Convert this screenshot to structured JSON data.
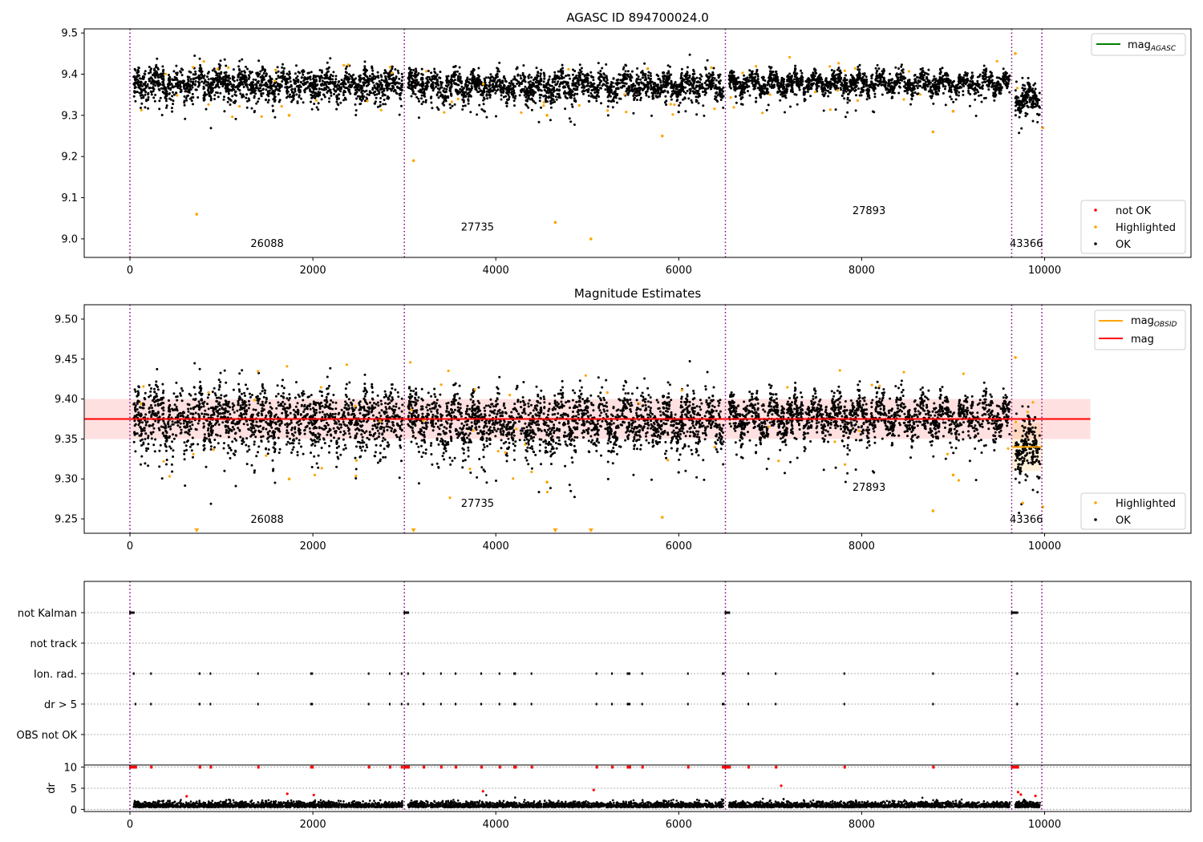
{
  "chart_data": [
    {
      "type": "scatter",
      "title": "AGASC ID 894700024.0",
      "xlim": [
        -500,
        11600
      ],
      "ylim": [
        8.955,
        9.51
      ],
      "xticks": [
        0,
        2000,
        4000,
        6000,
        8000,
        10000
      ],
      "yticks": [
        9.0,
        9.1,
        9.2,
        9.3,
        9.4,
        9.5
      ],
      "ytick_labels": [
        "9.0",
        "9.1",
        "9.2",
        "9.3",
        "9.4",
        "9.5"
      ],
      "obsid_boundaries": [
        0,
        3000,
        6510,
        9640,
        9970
      ],
      "obsid_labels": [
        {
          "text": "26088",
          "x": 1500,
          "y": 8.98
        },
        {
          "text": "27735",
          "x": 3800,
          "y": 9.02
        },
        {
          "text": "27893",
          "x": 8080,
          "y": 9.06
        },
        {
          "text": "43366",
          "x": 9800,
          "y": 8.98
        }
      ],
      "lines": [
        {
          "name": "mag_AGASC",
          "label_base": "mag",
          "label_sub": "AGASC",
          "color": "#008000",
          "y": null
        }
      ],
      "legend_lines_loc": "upper right",
      "legend_points": [
        {
          "label": "not OK",
          "color": "#ff0000"
        },
        {
          "label": "Highlighted",
          "color": "#ffa500"
        },
        {
          "label": "OK",
          "color": "#000000"
        }
      ],
      "legend_points_loc": "lower right",
      "highlighted_outliers": [
        {
          "x": 730,
          "y": 9.06
        },
        {
          "x": 3100,
          "y": 9.19
        },
        {
          "x": 4650,
          "y": 9.04
        },
        {
          "x": 5040,
          "y": 9.0
        },
        {
          "x": 5820,
          "y": 9.25
        },
        {
          "x": 8780,
          "y": 9.26
        },
        {
          "x": 9000,
          "y": 9.31
        },
        {
          "x": 9680,
          "y": 9.45
        },
        {
          "x": 9980,
          "y": 9.27
        },
        {
          "x": 1740,
          "y": 9.3
        },
        {
          "x": 4560,
          "y": 9.3
        }
      ],
      "segments": [
        {
          "x0": 0,
          "x1": 3000,
          "mean": 9.375,
          "spread": 0.022
        },
        {
          "x0": 3000,
          "x1": 6510,
          "mean": 9.372,
          "spread": 0.02
        },
        {
          "x0": 6510,
          "x1": 9640,
          "mean": 9.378,
          "spread": 0.014
        },
        {
          "x0": 9640,
          "x1": 9970,
          "mean": 9.34,
          "spread": 0.02
        }
      ]
    },
    {
      "type": "scatter",
      "title": "Magnitude Estimates",
      "xlim": [
        -500,
        11600
      ],
      "ylim": [
        9.232,
        9.518
      ],
      "xticks": [
        0,
        2000,
        4000,
        6000,
        8000,
        10000
      ],
      "yticks": [
        9.25,
        9.3,
        9.35,
        9.4,
        9.45,
        9.5
      ],
      "ytick_labels": [
        "9.25",
        "9.30",
        "9.35",
        "9.40",
        "9.45",
        "9.50"
      ],
      "obsid_boundaries": [
        0,
        3000,
        6510,
        9640,
        9970
      ],
      "obsid_labels": [
        {
          "text": "26088",
          "x": 1500,
          "y": 9.245
        },
        {
          "text": "27735",
          "x": 3800,
          "y": 9.265
        },
        {
          "text": "27893",
          "x": 8080,
          "y": 9.285
        },
        {
          "text": "43366",
          "x": 9800,
          "y": 9.245
        }
      ],
      "mag": 9.375,
      "mag_band": [
        9.35,
        9.4
      ],
      "mag_line_x": [
        -500,
        10500
      ],
      "mag_obsid": [
        {
          "x0": 9640,
          "x1": 9970,
          "y": 9.34,
          "band": [
            9.31,
            9.37
          ]
        }
      ],
      "legend_lines": [
        {
          "label_base": "mag",
          "label_sub": "OBSID",
          "color": "#ffa500"
        },
        {
          "label_base": "mag",
          "label_sub": "",
          "color": "#ff0000"
        }
      ],
      "legend_lines_loc": "upper right",
      "legend_points": [
        {
          "label": "Highlighted",
          "color": "#ffa500"
        },
        {
          "label": "OK",
          "color": "#000000"
        }
      ],
      "legend_points_loc": "lower right",
      "below_range_markers_x": [
        730,
        3100,
        4650,
        5040
      ],
      "highlighted_outliers": [
        {
          "x": 5820,
          "y": 9.252
        },
        {
          "x": 8780,
          "y": 9.26
        },
        {
          "x": 9000,
          "y": 9.305
        },
        {
          "x": 9680,
          "y": 9.452
        },
        {
          "x": 9980,
          "y": 9.265
        },
        {
          "x": 1740,
          "y": 9.3
        },
        {
          "x": 4560,
          "y": 9.296
        }
      ]
    },
    {
      "type": "scatter",
      "title": "",
      "xlim": [
        -500,
        11600
      ],
      "xticks": [
        0,
        2000,
        4000,
        6000,
        8000,
        10000
      ],
      "categories": [
        "not Kalman",
        "not track",
        "Ion. rad.",
        "dr > 5",
        "OBS not OK"
      ],
      "obsid_boundaries": [
        0,
        3000,
        6510,
        9640,
        9970
      ],
      "flag_events": {
        "not Kalman": [
          [
            0,
            60
          ],
          [
            3000,
            60
          ],
          [
            6510,
            60
          ],
          [
            9640,
            80
          ]
        ],
        "not track": [],
        "Ion. rad.": [
          [
            40,
            20
          ],
          [
            230,
            0
          ],
          [
            760,
            20
          ],
          [
            880,
            0
          ],
          [
            1400,
            0
          ],
          [
            1980,
            30
          ],
          [
            2610,
            0
          ],
          [
            2840,
            0
          ],
          [
            2970,
            0
          ],
          [
            3040,
            0
          ],
          [
            3210,
            0
          ],
          [
            3400,
            0
          ],
          [
            3560,
            0
          ],
          [
            3840,
            0
          ],
          [
            4040,
            0
          ],
          [
            4200,
            30
          ],
          [
            4390,
            0
          ],
          [
            5100,
            0
          ],
          [
            5270,
            0
          ],
          [
            5440,
            40
          ],
          [
            5600,
            0
          ],
          [
            6100,
            0
          ],
          [
            6480,
            30
          ],
          [
            6760,
            0
          ],
          [
            7060,
            0
          ],
          [
            7810,
            0
          ],
          [
            8780,
            0
          ],
          [
            9700,
            0
          ]
        ],
        "dr > 5": [
          [
            60,
            0
          ],
          [
            230,
            0
          ],
          [
            760,
            20
          ],
          [
            880,
            0
          ],
          [
            1400,
            0
          ],
          [
            1980,
            30
          ],
          [
            2610,
            0
          ],
          [
            2840,
            0
          ],
          [
            2970,
            0
          ],
          [
            3040,
            0
          ],
          [
            3210,
            0
          ],
          [
            3400,
            0
          ],
          [
            3560,
            0
          ],
          [
            3840,
            0
          ],
          [
            4040,
            0
          ],
          [
            4200,
            30
          ],
          [
            4390,
            0
          ],
          [
            5100,
            0
          ],
          [
            5270,
            0
          ],
          [
            5440,
            40
          ],
          [
            5600,
            0
          ],
          [
            6100,
            0
          ],
          [
            6480,
            30
          ],
          [
            6760,
            0
          ],
          [
            7060,
            0
          ],
          [
            7810,
            0
          ],
          [
            8780,
            0
          ],
          [
            9700,
            0
          ]
        ],
        "OBS not OK": []
      },
      "dr_panel": {
        "ylabel": "dr",
        "ylim": [
          -0.5,
          10.5
        ],
        "yticks": [
          0,
          5,
          10
        ],
        "ytick_labels": [
          "0",
          "5",
          "10"
        ],
        "clipped_value": 10,
        "clipped_color": "#ff0000",
        "scatter_color": "#000000",
        "red_points": [
          {
            "x": 620,
            "y": 3.1
          },
          {
            "x": 1720,
            "y": 3.7
          },
          {
            "x": 2010,
            "y": 3.4
          },
          {
            "x": 3860,
            "y": 4.3
          },
          {
            "x": 5070,
            "y": 4.6
          },
          {
            "x": 7120,
            "y": 5.6
          },
          {
            "x": 9710,
            "y": 4.1
          },
          {
            "x": 9740,
            "y": 3.5
          },
          {
            "x": 9900,
            "y": 3.2
          }
        ]
      }
    }
  ]
}
